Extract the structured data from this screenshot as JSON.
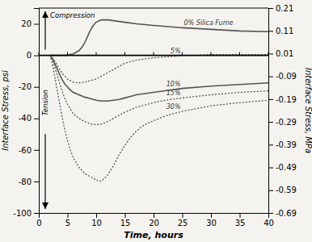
{
  "chart_data": {
    "type": "line",
    "x_label": "Time, hours",
    "y_label": "Interface Stress, psi",
    "y2_label": "Interface Stress, MPa",
    "xlim": [
      0,
      40
    ],
    "ylim": [
      -100,
      30
    ],
    "y2lim": [
      -0.69,
      0.21
    ],
    "xticks": [
      0,
      5,
      10,
      15,
      20,
      25,
      30,
      35,
      40
    ],
    "yticks": [
      -100,
      -80,
      -60,
      -40,
      -20,
      0,
      20
    ],
    "y2ticks": [
      -0.69,
      -0.59,
      -0.49,
      -0.39,
      -0.29,
      -0.19,
      -0.09,
      0.01,
      0.11,
      0.21
    ],
    "hline": 0,
    "background": "#f5f3ef",
    "annotations": [
      {
        "text": "Compression",
        "direction": "up"
      },
      {
        "text": "Tension",
        "direction": "down"
      }
    ],
    "series": [
      {
        "name": "0% Silica Fume",
        "color": "#555555",
        "line_style": "solid",
        "x": [
          2,
          2.5,
          3,
          3.5,
          4,
          4.5,
          5,
          5.5,
          6,
          6.5,
          7,
          7.5,
          8,
          8.5,
          9,
          9.5,
          10,
          10.5,
          11,
          12,
          13,
          14,
          15,
          17,
          20,
          25,
          30,
          35,
          40
        ],
        "values": [
          0,
          0,
          0,
          0,
          0,
          0,
          0,
          0.5,
          1,
          2,
          3,
          5,
          8,
          12,
          16,
          19,
          21,
          22,
          22.5,
          22.5,
          22,
          21.5,
          21,
          20,
          19,
          17.5,
          16.5,
          15.5,
          15
        ]
      },
      {
        "name": "5%",
        "color": "#555555",
        "line_style": "dotted",
        "x": [
          2,
          2.5,
          3,
          3.5,
          4,
          4.5,
          5,
          5.5,
          6,
          7,
          8,
          9,
          10,
          11,
          12,
          13,
          14,
          15,
          16,
          17,
          18,
          19,
          20,
          22,
          24,
          25,
          27,
          30,
          35,
          40
        ],
        "values": [
          0,
          -2,
          -5,
          -8,
          -11,
          -13,
          -15,
          -16,
          -17,
          -17.5,
          -17,
          -16,
          -15,
          -13,
          -11,
          -9,
          -7,
          -5,
          -4,
          -3,
          -2.5,
          -2,
          -1.5,
          -1,
          -0.5,
          -0.2,
          0,
          0.5,
          0.5,
          0.5
        ]
      },
      {
        "name": "10%",
        "color": "#555555",
        "line_style": "solid",
        "x": [
          2,
          2.5,
          3,
          3.5,
          4,
          4.5,
          5,
          5.5,
          6,
          7,
          8,
          9,
          10,
          11,
          12,
          13,
          14,
          15,
          16,
          17,
          18,
          19,
          20,
          22,
          25,
          30,
          35,
          40
        ],
        "values": [
          0,
          -3,
          -7,
          -11,
          -15,
          -18,
          -20,
          -22,
          -23.5,
          -25,
          -26.5,
          -27.5,
          -28.5,
          -29,
          -29,
          -28.5,
          -28,
          -27,
          -26,
          -25,
          -24.5,
          -24,
          -23.5,
          -22.5,
          -21,
          -19.5,
          -18.5,
          -17.5
        ]
      },
      {
        "name": "15%",
        "color": "#555555",
        "line_style": "dotted",
        "x": [
          2,
          2.5,
          3,
          3.5,
          4,
          4.5,
          5,
          5.5,
          6,
          7,
          8,
          9,
          10,
          11,
          12,
          13,
          14,
          15,
          16,
          17,
          18,
          19,
          20,
          22,
          25,
          30,
          35,
          40
        ],
        "values": [
          0,
          -4,
          -10,
          -16,
          -22,
          -27,
          -31,
          -34,
          -37,
          -40,
          -42,
          -43.5,
          -44,
          -43.5,
          -42,
          -40,
          -38,
          -36,
          -34.5,
          -33,
          -32,
          -31,
          -30,
          -28.5,
          -27,
          -25,
          -23.5,
          -22.5
        ]
      },
      {
        "name": "30%",
        "color": "#555555",
        "line_style": "dotted",
        "x": [
          2,
          2.5,
          3,
          3.5,
          4,
          4.5,
          5,
          5.5,
          6,
          7,
          8,
          9,
          10,
          10.5,
          11,
          12,
          13,
          14,
          15,
          16,
          17,
          18,
          19,
          20,
          22,
          25,
          30,
          35,
          40
        ],
        "values": [
          0,
          -8,
          -18,
          -28,
          -38,
          -47,
          -54,
          -60,
          -65,
          -71,
          -75,
          -77,
          -79,
          -80,
          -79.5,
          -76,
          -70,
          -63,
          -57,
          -52,
          -48,
          -45,
          -43,
          -41.5,
          -38.5,
          -35.5,
          -32,
          -30,
          -28.5
        ]
      }
    ]
  }
}
